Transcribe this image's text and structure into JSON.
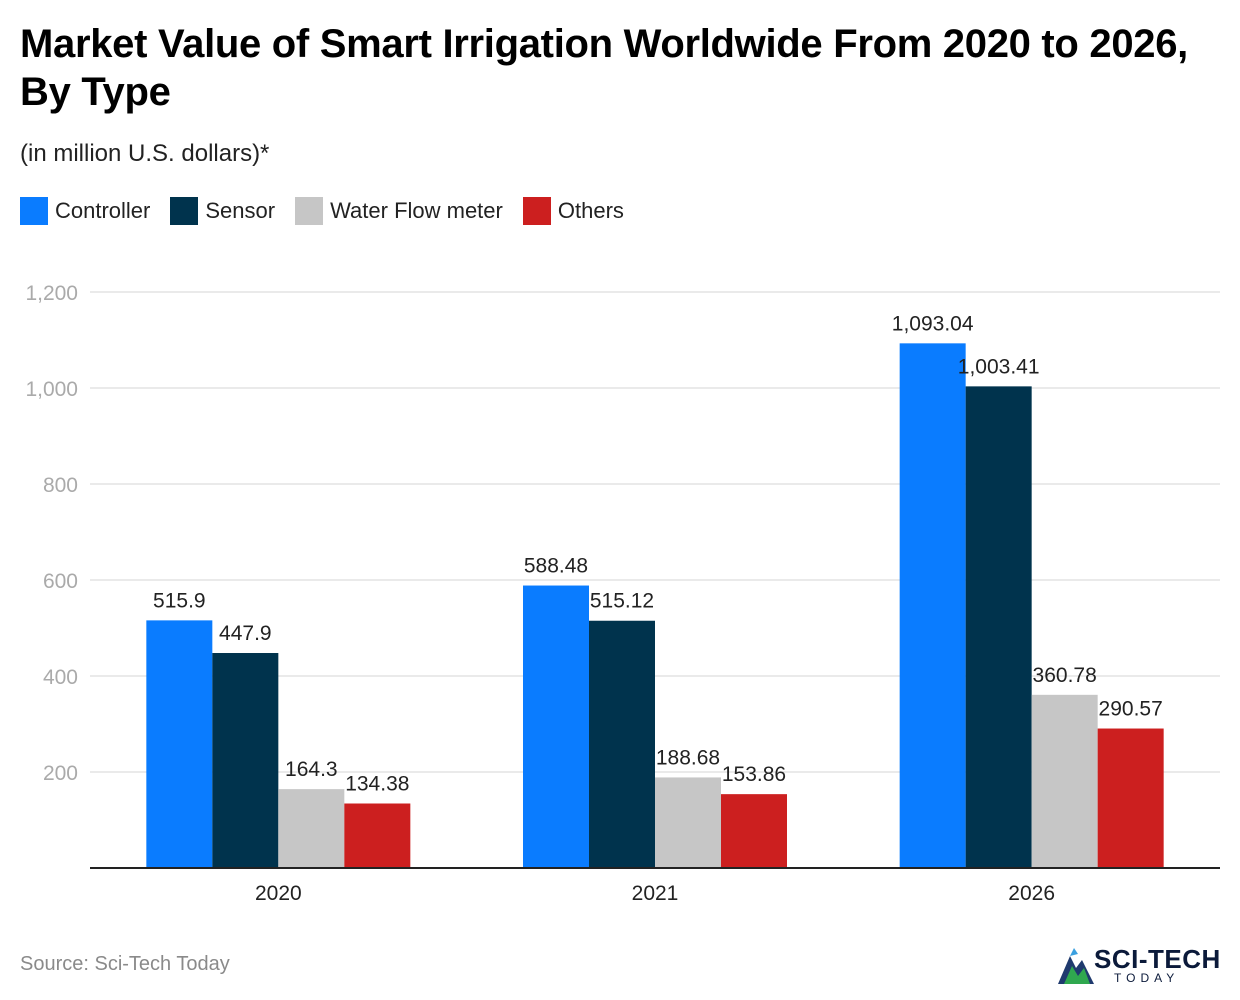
{
  "title": "Market Value of Smart Irrigation Worldwide From 2020 to 2026, By Type",
  "subtitle": "(in million U.S. dollars)*",
  "source": "Source: Sci-Tech Today",
  "logo": {
    "name": "SCI-TECH",
    "tagline": "TODAY"
  },
  "colors": {
    "Controller": "#0a7cff",
    "Sensor": "#00334d",
    "Water Flow meter": "#c6c6c6",
    "Others": "#cc1f1f",
    "grid": "#e3e3e3",
    "axis": "#222222",
    "tick": "#aaaaaa"
  },
  "chart_data": {
    "type": "bar",
    "title": "Market Value of Smart Irrigation Worldwide From 2020 to 2026, By Type",
    "xlabel": "",
    "ylabel": "",
    "categories": [
      "2020",
      "2021",
      "2026"
    ],
    "series": [
      {
        "name": "Controller",
        "values": [
          515.9,
          588.48,
          1093.04
        ],
        "labels": [
          "515.9",
          "588.48",
          "1,093.04"
        ]
      },
      {
        "name": "Sensor",
        "values": [
          447.9,
          515.12,
          1003.41
        ],
        "labels": [
          "447.9",
          "515.12",
          "1,003.41"
        ]
      },
      {
        "name": "Water Flow meter",
        "values": [
          164.3,
          188.68,
          360.78
        ],
        "labels": [
          "164.3",
          "188.68",
          "360.78"
        ]
      },
      {
        "name": "Others",
        "values": [
          134.38,
          153.86,
          290.57
        ],
        "labels": [
          "134.38",
          "153.86",
          "290.57"
        ]
      }
    ],
    "yticks": [
      200,
      400,
      600,
      800,
      1000,
      1200
    ],
    "ytick_labels": [
      "200",
      "400",
      "600",
      "800",
      "1,000",
      "1,200"
    ],
    "ylim": [
      0,
      1200
    ],
    "grid": true,
    "legend": "top-left"
  }
}
